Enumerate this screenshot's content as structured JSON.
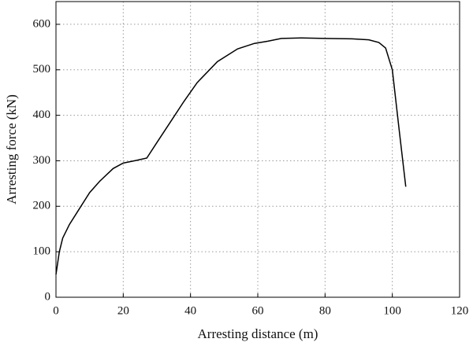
{
  "chart_data": {
    "type": "line",
    "x_label": "Arresting distance (m)",
    "y_label": "Arresting force (kN)",
    "xlim": [
      0,
      120
    ],
    "xticks": [
      0,
      20,
      40,
      60,
      80,
      100,
      120
    ],
    "ylim": [
      0,
      650
    ],
    "yticks": [
      0,
      100,
      200,
      300,
      400,
      500,
      600
    ],
    "grid": true,
    "series": [
      {
        "color": "#000000",
        "x": [
          0,
          1,
          2,
          4,
          7,
          10,
          13,
          17,
          20,
          24,
          27,
          30,
          34,
          38,
          42,
          48,
          54,
          59,
          63,
          67,
          73,
          80,
          88,
          93,
          96,
          98,
          100,
          102,
          104
        ],
        "values": [
          50,
          100,
          130,
          160,
          195,
          230,
          255,
          283,
          295,
          301,
          306,
          340,
          385,
          430,
          472,
          518,
          546,
          558,
          563,
          569,
          570,
          569,
          568,
          566,
          560,
          548,
          500,
          370,
          243
        ]
      }
    ]
  }
}
